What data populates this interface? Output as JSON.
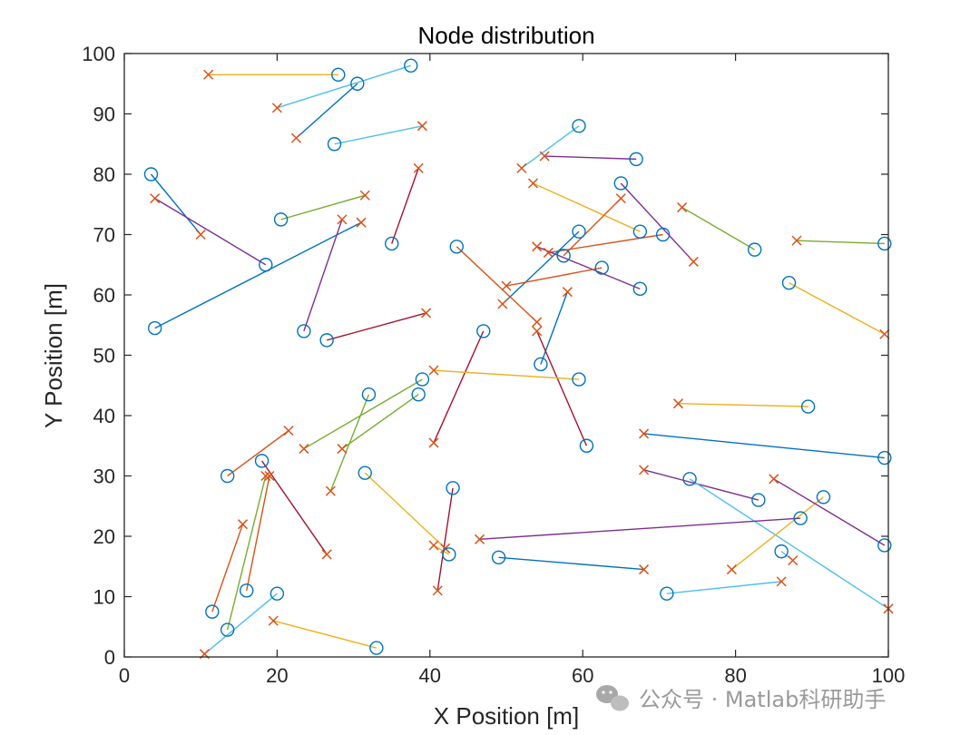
{
  "chart_data": {
    "type": "scatter",
    "title": "Node distribution",
    "xlabel": "X Position [m]",
    "ylabel": "Y Position [m]",
    "xlim": [
      0,
      100
    ],
    "ylim": [
      0,
      100
    ],
    "xticks": [
      "0",
      "20",
      "40",
      "60",
      "80",
      "100"
    ],
    "yticks": [
      "0",
      "10",
      "20",
      "30",
      "40",
      "50",
      "60",
      "70",
      "80",
      "90",
      "100"
    ],
    "grid": false,
    "node_marker": "circle",
    "target_marker": "cross",
    "palette": [
      "#0072BD",
      "#D95319",
      "#EDB120",
      "#7E2F8E",
      "#77AC30",
      "#4DBEEE",
      "#A2142F"
    ],
    "links": [
      {
        "from": [
          28,
          96.5
        ],
        "to": [
          11,
          96.5
        ],
        "color": "#EDB120"
      },
      {
        "from": [
          37.5,
          98
        ],
        "to": [
          20,
          91
        ],
        "color": "#4DBEEE"
      },
      {
        "from": [
          30.5,
          95
        ],
        "to": [
          22.5,
          86
        ],
        "color": "#0072BD"
      },
      {
        "from": [
          27.5,
          85
        ],
        "to": [
          39,
          88
        ],
        "color": "#4DBEEE"
      },
      {
        "from": [
          3.5,
          80
        ],
        "to": [
          10,
          70
        ],
        "color": "#0072BD"
      },
      {
        "from": [
          18.5,
          65
        ],
        "to": [
          4,
          76
        ],
        "color": "#7E2F8E"
      },
      {
        "from": [
          20.5,
          72.5
        ],
        "to": [
          31.5,
          76.5
        ],
        "color": "#77AC30"
      },
      {
        "from": [
          4,
          54.5
        ],
        "to": [
          31,
          72
        ],
        "color": "#0072BD"
      },
      {
        "from": [
          23.5,
          54
        ],
        "to": [
          28.5,
          72.5
        ],
        "color": "#7E2F8E"
      },
      {
        "from": [
          35,
          68.5
        ],
        "to": [
          38.5,
          81
        ],
        "color": "#A2142F"
      },
      {
        "from": [
          26.5,
          52.5
        ],
        "to": [
          39.5,
          57
        ],
        "color": "#A2142F"
      },
      {
        "from": [
          59.5,
          88
        ],
        "to": [
          52,
          81
        ],
        "color": "#4DBEEE"
      },
      {
        "from": [
          67,
          82.5
        ],
        "to": [
          55,
          83
        ],
        "color": "#7E2F8E"
      },
      {
        "from": [
          67.5,
          70.5
        ],
        "to": [
          53.5,
          78.5
        ],
        "color": "#EDB120"
      },
      {
        "from": [
          65,
          78.5
        ],
        "to": [
          74.5,
          65.5
        ],
        "color": "#7E2F8E"
      },
      {
        "from": [
          70.5,
          70
        ],
        "to": [
          55.5,
          67
        ],
        "color": "#D95319"
      },
      {
        "from": [
          67.5,
          61
        ],
        "to": [
          54,
          68
        ],
        "color": "#7E2F8E"
      },
      {
        "from": [
          59.5,
          70.5
        ],
        "to": [
          49.5,
          58.5
        ],
        "color": "#0072BD"
      },
      {
        "from": [
          57.5,
          66.5
        ],
        "to": [
          65,
          76
        ],
        "color": "#D95319"
      },
      {
        "from": [
          62.5,
          64.5
        ],
        "to": [
          50,
          61.5
        ],
        "color": "#D95319"
      },
      {
        "from": [
          43.5,
          68
        ],
        "to": [
          54,
          55.5
        ],
        "color": "#D95319"
      },
      {
        "from": [
          54.5,
          48.5
        ],
        "to": [
          58,
          60.5
        ],
        "color": "#0072BD"
      },
      {
        "from": [
          60.5,
          35
        ],
        "to": [
          54,
          54
        ],
        "color": "#A2142F"
      },
      {
        "from": [
          47,
          54
        ],
        "to": [
          40.5,
          35.5
        ],
        "color": "#A2142F"
      },
      {
        "from": [
          59.5,
          46
        ],
        "to": [
          40.5,
          47.5
        ],
        "color": "#EDB120"
      },
      {
        "from": [
          82.5,
          67.5
        ],
        "to": [
          73,
          74.5
        ],
        "color": "#77AC30"
      },
      {
        "from": [
          99.5,
          68.5
        ],
        "to": [
          88,
          69
        ],
        "color": "#77AC30"
      },
      {
        "from": [
          87,
          62
        ],
        "to": [
          99.5,
          53.5
        ],
        "color": "#EDB120"
      },
      {
        "from": [
          89.5,
          41.5
        ],
        "to": [
          72.5,
          42
        ],
        "color": "#EDB120"
      },
      {
        "from": [
          99.5,
          33
        ],
        "to": [
          68,
          37
        ],
        "color": "#0072BD"
      },
      {
        "from": [
          83,
          26
        ],
        "to": [
          68,
          31
        ],
        "color": "#7E2F8E"
      },
      {
        "from": [
          74,
          29.5
        ],
        "to": [
          100,
          8
        ],
        "color": "#4DBEEE"
      },
      {
        "from": [
          91.5,
          26.5
        ],
        "to": [
          79.5,
          14.5
        ],
        "color": "#EDB120"
      },
      {
        "from": [
          88.5,
          23
        ],
        "to": [
          46.5,
          19.5
        ],
        "color": "#7E2F8E"
      },
      {
        "from": [
          99.5,
          18.5
        ],
        "to": [
          85,
          29.5
        ],
        "color": "#7E2F8E"
      },
      {
        "from": [
          86,
          17.5
        ],
        "to": [
          87.5,
          16
        ],
        "color": "#4DBEEE"
      },
      {
        "from": [
          49,
          16.5
        ],
        "to": [
          68,
          14.5
        ],
        "color": "#0072BD"
      },
      {
        "from": [
          71,
          10.5
        ],
        "to": [
          86,
          12.5
        ],
        "color": "#4DBEEE"
      },
      {
        "from": [
          39,
          46
        ],
        "to": [
          23.5,
          34.5
        ],
        "color": "#77AC30"
      },
      {
        "from": [
          38.5,
          43.5
        ],
        "to": [
          28.5,
          34.5
        ],
        "color": "#77AC30"
      },
      {
        "from": [
          32,
          43.5
        ],
        "to": [
          27,
          27.5
        ],
        "color": "#77AC30"
      },
      {
        "from": [
          13.5,
          30
        ],
        "to": [
          21.5,
          37.5
        ],
        "color": "#D95319"
      },
      {
        "from": [
          18,
          32.5
        ],
        "to": [
          26.5,
          17
        ],
        "color": "#A2142F"
      },
      {
        "from": [
          31.5,
          30.5
        ],
        "to": [
          42,
          18
        ],
        "color": "#EDB120"
      },
      {
        "from": [
          43,
          28
        ],
        "to": [
          41,
          11
        ],
        "color": "#A2142F"
      },
      {
        "from": [
          42.5,
          17
        ],
        "to": [
          40.5,
          18.5
        ],
        "color": "#EDB120"
      },
      {
        "from": [
          11.5,
          7.5
        ],
        "to": [
          15.5,
          22
        ],
        "color": "#D95319"
      },
      {
        "from": [
          16,
          11
        ],
        "to": [
          19,
          30
        ],
        "color": "#D95319"
      },
      {
        "from": [
          13.5,
          4.5
        ],
        "to": [
          18.5,
          30
        ],
        "color": "#77AC30"
      },
      {
        "from": [
          20,
          10.5
        ],
        "to": [
          10.5,
          0.5
        ],
        "color": "#4DBEEE"
      },
      {
        "from": [
          33,
          1.5
        ],
        "to": [
          19.5,
          6
        ],
        "color": "#EDB120"
      }
    ]
  },
  "watermark": {
    "text": "公众号 · Matlab科研助手",
    "icon": "wechat-icon"
  }
}
